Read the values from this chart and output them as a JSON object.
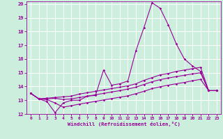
{
  "xlabel": "Windchill (Refroidissement éolien,°C)",
  "bg_color": "#cceedd",
  "grid_color": "#ffffff",
  "line_color": "#990099",
  "xlim": [
    -0.5,
    23.5
  ],
  "ylim": [
    12,
    20.2
  ],
  "xticks": [
    0,
    1,
    2,
    3,
    4,
    5,
    6,
    7,
    8,
    9,
    10,
    11,
    12,
    13,
    14,
    15,
    16,
    17,
    18,
    19,
    20,
    21,
    22,
    23
  ],
  "yticks": [
    12,
    13,
    14,
    15,
    16,
    17,
    18,
    19,
    20
  ],
  "series": [
    {
      "x": [
        0,
        1,
        2,
        3,
        4,
        5,
        6,
        7,
        8,
        9,
        10,
        11,
        12,
        13,
        14,
        15,
        16,
        17,
        18,
        19,
        20,
        21,
        22,
        23
      ],
      "y": [
        13.5,
        13.1,
        12.9,
        12.1,
        12.8,
        13.0,
        13.0,
        13.3,
        13.35,
        15.2,
        14.1,
        14.2,
        14.4,
        16.6,
        18.3,
        20.1,
        19.7,
        18.5,
        17.1,
        16.0,
        15.5,
        15.1,
        13.7,
        13.7
      ]
    },
    {
      "x": [
        0,
        1,
        2,
        3,
        4,
        5,
        6,
        7,
        8,
        9,
        10,
        11,
        12,
        13,
        14,
        15,
        16,
        17,
        18,
        19,
        20,
        21,
        22,
        23
      ],
      "y": [
        13.5,
        13.1,
        13.15,
        13.2,
        13.25,
        13.3,
        13.45,
        13.55,
        13.65,
        13.75,
        13.85,
        13.95,
        14.05,
        14.2,
        14.45,
        14.65,
        14.85,
        14.95,
        15.1,
        15.2,
        15.3,
        15.4,
        13.7,
        13.7
      ]
    },
    {
      "x": [
        0,
        1,
        2,
        3,
        4,
        5,
        6,
        7,
        8,
        9,
        10,
        11,
        12,
        13,
        14,
        15,
        16,
        17,
        18,
        19,
        20,
        21,
        22,
        23
      ],
      "y": [
        13.5,
        13.1,
        13.1,
        13.15,
        13.05,
        13.1,
        13.2,
        13.3,
        13.4,
        13.5,
        13.6,
        13.7,
        13.82,
        13.95,
        14.15,
        14.35,
        14.5,
        14.62,
        14.72,
        14.82,
        14.92,
        15.0,
        13.7,
        13.7
      ]
    },
    {
      "x": [
        0,
        1,
        2,
        3,
        4,
        5,
        6,
        7,
        8,
        9,
        10,
        11,
        12,
        13,
        14,
        15,
        16,
        17,
        18,
        19,
        20,
        21,
        22,
        23
      ],
      "y": [
        13.5,
        13.1,
        13.05,
        12.8,
        12.5,
        12.6,
        12.72,
        12.82,
        12.92,
        13.02,
        13.12,
        13.22,
        13.32,
        13.48,
        13.65,
        13.85,
        13.98,
        14.1,
        14.2,
        14.3,
        14.42,
        14.52,
        13.7,
        13.7
      ]
    }
  ]
}
